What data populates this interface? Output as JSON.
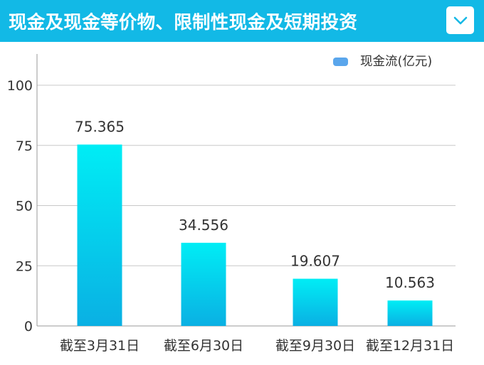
{
  "header": {
    "title": "现金及现金等价物、限制性现金及短期投资",
    "dropdown_icon": "chevron-down-icon"
  },
  "colors": {
    "header_bg": "#12b9e6",
    "bar_top": "#00edf5",
    "bar_bottom": "#0ab0e3",
    "legend_swatch": "#5aa6ec"
  },
  "chart_data": {
    "type": "bar",
    "title": "",
    "xlabel": "",
    "ylabel": "",
    "categories": [
      "截至3月31日",
      "截至6月30日",
      "截至9月30日",
      "截至12月31日"
    ],
    "series": [
      {
        "name": "现金流(亿元)",
        "values": [
          75.365,
          34.556,
          19.607,
          10.563
        ]
      }
    ],
    "data_labels": [
      "75.365",
      "34.556",
      "19.607",
      "10.563"
    ],
    "yticks": [
      0,
      25,
      50,
      75,
      100
    ],
    "ylim": [
      0,
      113
    ],
    "grid": true,
    "legend_position": "top-right"
  }
}
